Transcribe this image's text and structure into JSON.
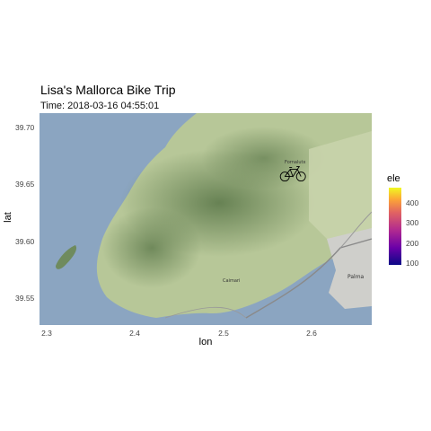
{
  "header": {
    "title": "Lisa's Mallorca Bike Trip",
    "subtitle": "Time: 2018-03-16 04:55:01"
  },
  "axes": {
    "xlabel": "lon",
    "ylabel": "lat",
    "xticks": [
      "2.3",
      "2.4",
      "2.5",
      "2.6"
    ],
    "yticks": [
      "39.70",
      "39.65",
      "39.60",
      "39.55"
    ],
    "xlim": [
      2.29,
      2.665
    ],
    "ylim": [
      39.527,
      39.712
    ]
  },
  "legend": {
    "title": "ele",
    "ticks": [
      "400",
      "300",
      "200",
      "100"
    ],
    "range": [
      85,
      470
    ],
    "palette": "plasma"
  },
  "map": {
    "place_labels": [
      "Fornalutx",
      "Caimari",
      "Palma"
    ],
    "marker": {
      "icon": "bicycle-icon",
      "lon": 2.576,
      "lat": 39.659
    },
    "colors": {
      "sea": "#8ba5c1",
      "land": "#b8c79a",
      "mountain": "#6f8b5e",
      "urban": "#c9c9c6"
    }
  }
}
